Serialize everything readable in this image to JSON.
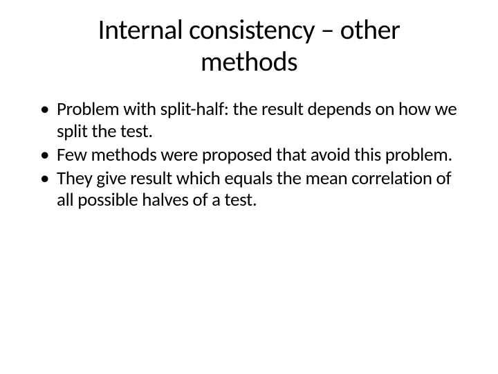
{
  "slide": {
    "title": "Internal consistency – other methods",
    "bullets": [
      "Problem with split-half: the result depends on how we split the test.",
      "Few methods were proposed that avoid this problem.",
      "They give result which equals the mean correlation of all possible halves of a test."
    ]
  },
  "styling": {
    "background_color": "#ffffff",
    "text_color": "#000000",
    "title_fontsize": 40,
    "bullet_fontsize": 27,
    "font_family": "Calibri"
  }
}
